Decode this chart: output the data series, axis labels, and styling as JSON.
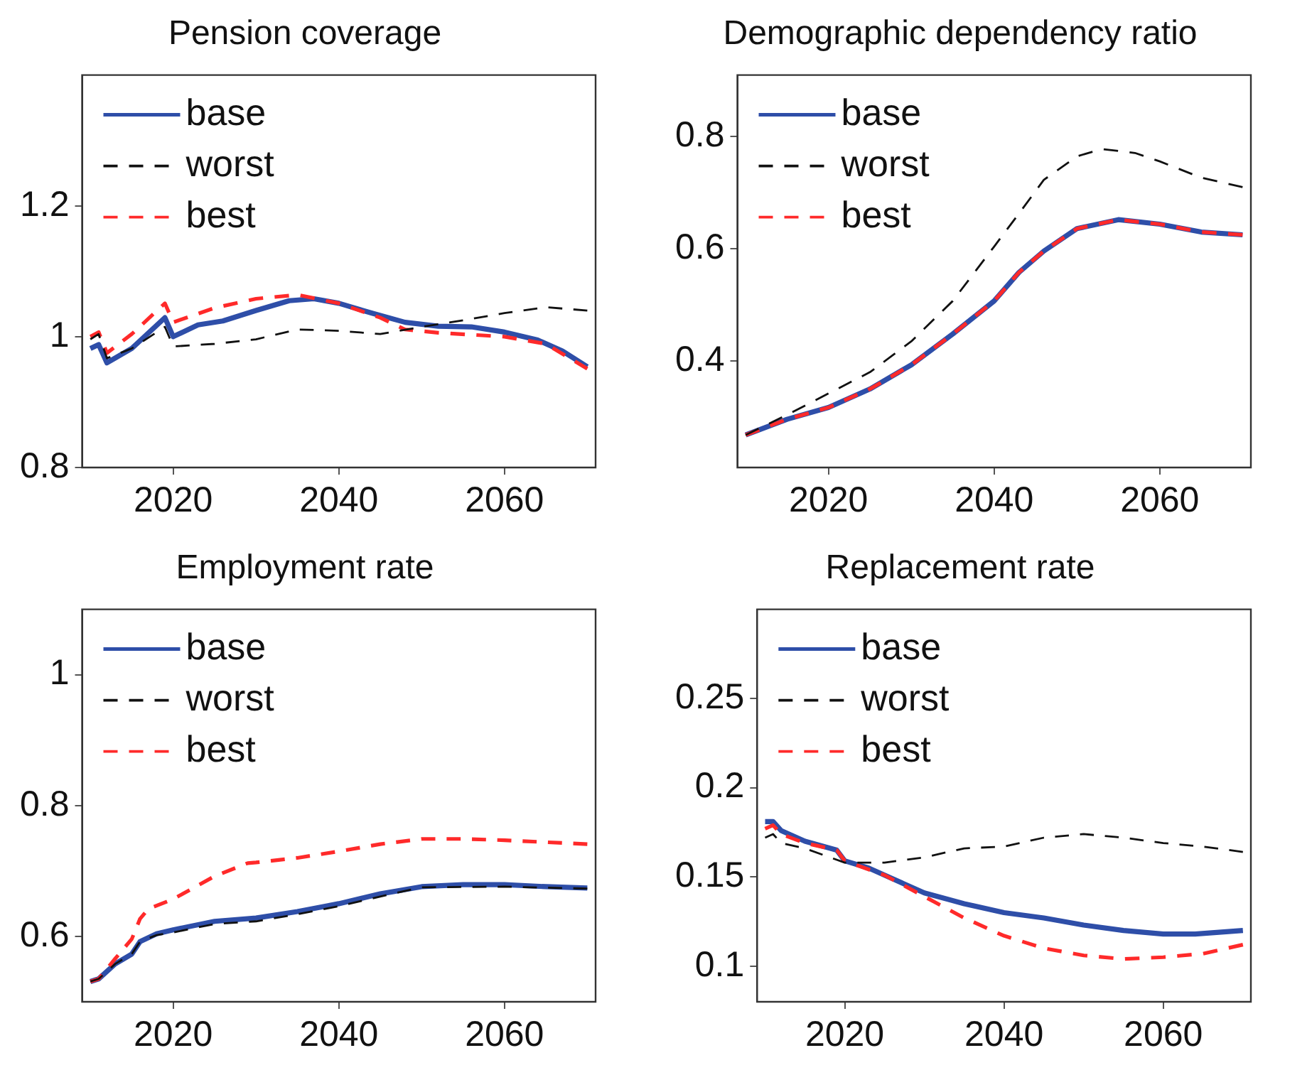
{
  "chart_data": [
    {
      "type": "line",
      "title": "Pension coverage",
      "xlim": [
        2009,
        2071
      ],
      "xticks": [
        2020,
        2040,
        2060
      ],
      "ylim": [
        0.8,
        1.4
      ],
      "yticks": [
        0.8,
        1,
        1.2
      ],
      "legend": "top left",
      "grid": false,
      "series": [
        {
          "name": "base",
          "color": "#2e4ea8",
          "line_style": "solid",
          "x": [
            2010,
            2011,
            2012,
            2015,
            2019,
            2020,
            2023,
            2026,
            2030,
            2034,
            2037,
            2040,
            2044,
            2048,
            2052,
            2056,
            2060,
            2064,
            2067,
            2070
          ],
          "values": [
            0.982,
            0.988,
            0.96,
            0.982,
            1.029,
            1.0,
            1.018,
            1.024,
            1.04,
            1.055,
            1.058,
            1.051,
            1.036,
            1.022,
            1.016,
            1.015,
            1.007,
            0.995,
            0.978,
            0.954
          ]
        },
        {
          "name": "worst",
          "color": "#111111",
          "line_style": "dashed",
          "x": [
            2010,
            2011,
            2012,
            2015,
            2019,
            2020,
            2025,
            2030,
            2035,
            2040,
            2045,
            2050,
            2055,
            2060,
            2065,
            2070
          ],
          "values": [
            0.996,
            1.004,
            0.967,
            0.982,
            1.015,
            0.985,
            0.989,
            0.996,
            1.011,
            1.009,
            1.004,
            1.015,
            1.025,
            1.036,
            1.045,
            1.04
          ]
        },
        {
          "name": "best",
          "color": "#ff2a2a",
          "line_style": "dashed",
          "x": [
            2010,
            2011,
            2012,
            2015,
            2019,
            2020,
            2025,
            2030,
            2035,
            2040,
            2045,
            2048,
            2052,
            2060,
            2065,
            2070
          ],
          "values": [
            1.0,
            1.007,
            0.975,
            1.004,
            1.051,
            1.022,
            1.044,
            1.058,
            1.064,
            1.051,
            1.029,
            1.011,
            1.006,
            1.0,
            0.989,
            0.951
          ]
        }
      ]
    },
    {
      "type": "line",
      "title": "Demographic dependency ratio",
      "xlim": [
        2009,
        2071
      ],
      "xticks": [
        2020,
        2040,
        2060
      ],
      "ylim": [
        0.21,
        0.91
      ],
      "yticks": [
        0.4,
        0.6,
        0.8
      ],
      "legend": "top left",
      "grid": false,
      "series": [
        {
          "name": "base",
          "color": "#2e4ea8",
          "line_style": "solid",
          "x": [
            2010,
            2015,
            2020,
            2025,
            2030,
            2035,
            2040,
            2043,
            2046,
            2050,
            2055,
            2060,
            2065,
            2070
          ],
          "values": [
            0.268,
            0.296,
            0.317,
            0.35,
            0.393,
            0.448,
            0.507,
            0.558,
            0.596,
            0.636,
            0.652,
            0.644,
            0.63,
            0.625
          ]
        },
        {
          "name": "worst",
          "color": "#111111",
          "line_style": "dashed",
          "x": [
            2010,
            2015,
            2020,
            2025,
            2030,
            2035,
            2040,
            2043,
            2046,
            2050,
            2053,
            2057,
            2060,
            2065,
            2070
          ],
          "values": [
            0.268,
            0.304,
            0.342,
            0.38,
            0.435,
            0.507,
            0.604,
            0.663,
            0.723,
            0.765,
            0.778,
            0.771,
            0.756,
            0.727,
            0.71
          ]
        },
        {
          "name": "best",
          "color": "#ff2a2a",
          "line_style": "dashed",
          "x": [
            2010,
            2015,
            2020,
            2025,
            2030,
            2035,
            2040,
            2043,
            2046,
            2050,
            2055,
            2060,
            2065,
            2070
          ],
          "values": [
            0.268,
            0.296,
            0.317,
            0.35,
            0.393,
            0.448,
            0.507,
            0.558,
            0.596,
            0.636,
            0.652,
            0.644,
            0.63,
            0.625
          ]
        }
      ]
    },
    {
      "type": "line",
      "title": "Employment rate",
      "xlim": [
        2009,
        2071
      ],
      "xticks": [
        2020,
        2040,
        2060
      ],
      "ylim": [
        0.5,
        1.1
      ],
      "yticks": [
        0.6,
        0.8,
        1
      ],
      "legend": "top left",
      "grid": false,
      "series": [
        {
          "name": "base",
          "color": "#2e4ea8",
          "line_style": "solid",
          "x": [
            2010,
            2011,
            2013,
            2015,
            2016,
            2018,
            2020,
            2025,
            2030,
            2035,
            2040,
            2045,
            2050,
            2055,
            2060,
            2065,
            2070
          ],
          "values": [
            0.531,
            0.535,
            0.558,
            0.573,
            0.592,
            0.604,
            0.61,
            0.623,
            0.628,
            0.638,
            0.65,
            0.665,
            0.676,
            0.679,
            0.679,
            0.676,
            0.674
          ]
        },
        {
          "name": "worst",
          "color": "#111111",
          "line_style": "dashed",
          "x": [
            2010,
            2011,
            2013,
            2015,
            2016,
            2018,
            2020,
            2025,
            2030,
            2035,
            2040,
            2045,
            2050,
            2060,
            2070
          ],
          "values": [
            0.531,
            0.535,
            0.558,
            0.573,
            0.592,
            0.602,
            0.606,
            0.619,
            0.623,
            0.634,
            0.646,
            0.661,
            0.675,
            0.676,
            0.673
          ]
        },
        {
          "name": "best",
          "color": "#ff2a2a",
          "line_style": "dashed",
          "x": [
            2010,
            2011,
            2013,
            2015,
            2016,
            2017,
            2020,
            2025,
            2029,
            2030,
            2035,
            2040,
            2045,
            2050,
            2055,
            2060,
            2065,
            2070
          ],
          "values": [
            0.531,
            0.535,
            0.566,
            0.596,
            0.627,
            0.642,
            0.657,
            0.692,
            0.712,
            0.713,
            0.72,
            0.73,
            0.741,
            0.749,
            0.749,
            0.747,
            0.744,
            0.741
          ]
        }
      ]
    },
    {
      "type": "line",
      "title": "Replacement rate",
      "xlim": [
        2009,
        2071
      ],
      "xticks": [
        2020,
        2040,
        2060
      ],
      "ylim": [
        0.08,
        0.3
      ],
      "yticks": [
        0.1,
        0.15,
        0.2,
        0.25
      ],
      "legend": "top left",
      "grid": false,
      "series": [
        {
          "name": "base",
          "color": "#2e4ea8",
          "line_style": "solid",
          "x": [
            2010,
            2011,
            2012,
            2015,
            2019,
            2020,
            2023,
            2025,
            2030,
            2035,
            2040,
            2045,
            2050,
            2055,
            2060,
            2064,
            2070
          ],
          "values": [
            0.181,
            0.181,
            0.176,
            0.17,
            0.165,
            0.159,
            0.155,
            0.151,
            0.141,
            0.135,
            0.13,
            0.127,
            0.123,
            0.12,
            0.118,
            0.118,
            0.12
          ]
        },
        {
          "name": "worst",
          "color": "#111111",
          "line_style": "dashed",
          "x": [
            2010,
            2011,
            2012,
            2015,
            2020,
            2025,
            2030,
            2035,
            2040,
            2045,
            2050,
            2055,
            2060,
            2065,
            2070
          ],
          "values": [
            0.172,
            0.174,
            0.169,
            0.166,
            0.158,
            0.158,
            0.161,
            0.166,
            0.167,
            0.172,
            0.174,
            0.172,
            0.169,
            0.167,
            0.164
          ]
        },
        {
          "name": "best",
          "color": "#ff2a2a",
          "line_style": "dashed",
          "x": [
            2010,
            2011,
            2012,
            2015,
            2019,
            2020,
            2025,
            2030,
            2035,
            2040,
            2045,
            2050,
            2055,
            2060,
            2065,
            2070
          ],
          "values": [
            0.177,
            0.179,
            0.174,
            0.169,
            0.165,
            0.159,
            0.151,
            0.139,
            0.127,
            0.117,
            0.11,
            0.106,
            0.104,
            0.105,
            0.107,
            0.112
          ]
        }
      ]
    }
  ]
}
